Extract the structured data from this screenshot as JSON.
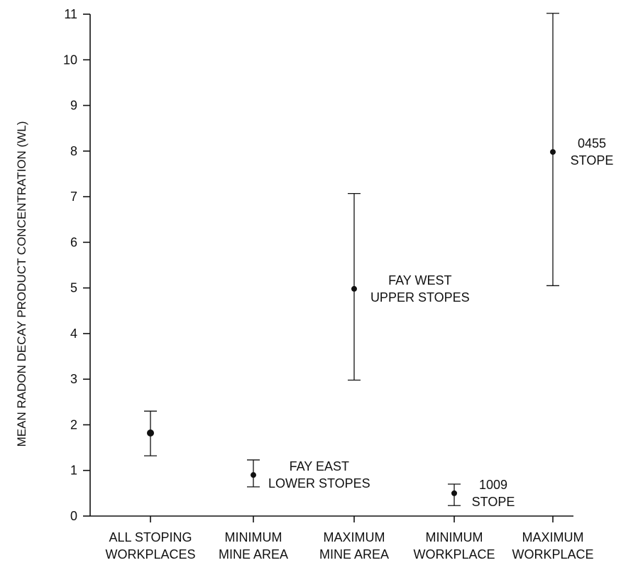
{
  "chart_data": {
    "type": "scatter",
    "title": "",
    "ylabel": "MEAN RADON DECAY PRODUCT CONCENTRATION (WL)",
    "xlabel": "",
    "ylim": [
      0,
      11
    ],
    "yticks": [
      0,
      1,
      2,
      3,
      4,
      5,
      6,
      7,
      8,
      9,
      10,
      11
    ],
    "grid": false,
    "categories": [
      [
        "ALL STOPING",
        "WORKPLACES"
      ],
      [
        "MINIMUM",
        "MINE AREA"
      ],
      [
        "MAXIMUM",
        "MINE AREA"
      ],
      [
        "MINIMUM",
        "WORKPLACE"
      ],
      [
        "MAXIMUM",
        "WORKPLACE"
      ]
    ],
    "points": [
      {
        "mean": 1.82,
        "low": 1.32,
        "high": 2.3,
        "annotation": []
      },
      {
        "mean": 0.9,
        "low": 0.64,
        "high": 1.23,
        "annotation": [
          "FAY EAST",
          "LOWER STOPES"
        ]
      },
      {
        "mean": 4.98,
        "low": 2.98,
        "high": 7.07,
        "annotation": [
          "FAY WEST",
          "UPPER STOPES"
        ]
      },
      {
        "mean": 0.5,
        "low": 0.23,
        "high": 0.7,
        "annotation": [
          "1009",
          "STOPE"
        ]
      },
      {
        "mean": 7.98,
        "low": 5.05,
        "high": 11.02,
        "annotation": [
          "0455",
          "STOPE"
        ]
      }
    ]
  }
}
